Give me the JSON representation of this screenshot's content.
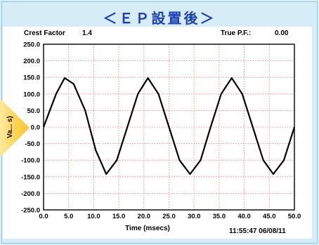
{
  "title": "＜ＥＰ設置後＞",
  "crest_factor_label": "Crest Factor",
  "crest_factor_value": "1.4",
  "true_pf_label": "True P.F.:",
  "true_pf_value": "0.00",
  "timestamp": "11:55:47 06/08/11",
  "colors": {
    "background": "#d6ecf7",
    "title": "#1a3fb4",
    "grid": "#f07a7a",
    "line": "#000000",
    "accent_arrow": "#ffd24a"
  },
  "chart_data": {
    "type": "line",
    "xlabel": "Time (msecs)",
    "ylabel": "Va... s)",
    "xlim": [
      0.0,
      50.0
    ],
    "ylim": [
      -250.0,
      250.0
    ],
    "grid": true,
    "x_ticks": [
      "0.0",
      "5.0",
      "10.0",
      "15.0",
      "20.0",
      "25.0",
      "30.0",
      "35.0",
      "40.0",
      "45.0",
      "50.0"
    ],
    "y_ticks": [
      "250.0",
      "200.0",
      "150.0",
      "100.0",
      "50.0",
      "0.0",
      "-50.0",
      "-100.0",
      "-150.0",
      "-200.0",
      "-250.0"
    ],
    "series": [
      {
        "x": [
          0.0,
          2.5,
          4.2,
          6.0,
          8.3,
          10.4,
          12.5,
          14.6,
          16.7,
          18.8,
          20.8,
          22.9,
          25.0,
          27.1,
          29.2,
          31.3,
          33.3,
          35.4,
          37.5,
          39.6,
          41.7,
          43.8,
          45.8,
          47.9,
          50.0
        ],
        "y": [
          0.0,
          100.0,
          148.0,
          130.0,
          50.0,
          -70.0,
          -142.0,
          -100.0,
          0.0,
          100.0,
          148.0,
          100.0,
          0.0,
          -100.0,
          -142.0,
          -100.0,
          0.0,
          100.0,
          148.0,
          100.0,
          0.0,
          -100.0,
          -142.0,
          -100.0,
          0.0
        ]
      }
    ]
  }
}
